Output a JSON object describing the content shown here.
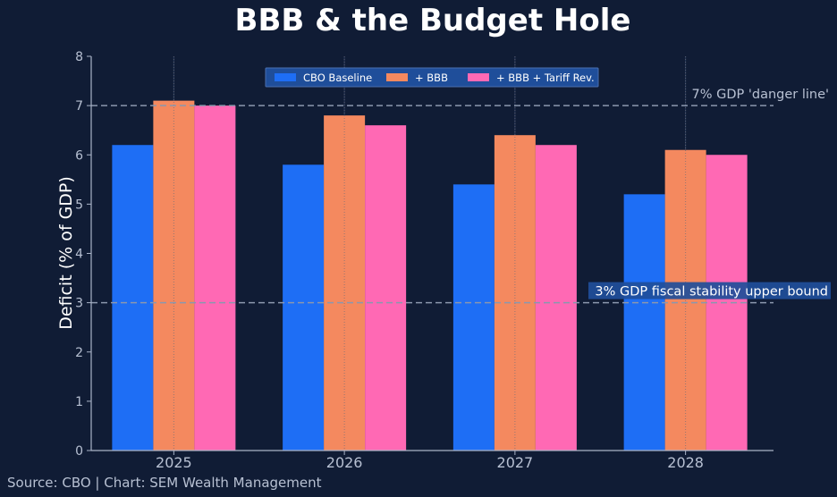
{
  "chart_data": {
    "type": "bar",
    "title": "BBB & the Budget Hole",
    "ylabel": "Deficit (% of GDP)",
    "xlabel": "",
    "ylim": [
      0,
      8
    ],
    "yticks": [
      "0",
      "1",
      "2",
      "3",
      "4",
      "5",
      "6",
      "7",
      "8"
    ],
    "categories": [
      "2025",
      "2026",
      "2027",
      "2028"
    ],
    "series": [
      {
        "name": "CBO Baseline",
        "color": "#1e6ef5",
        "values": [
          6.2,
          5.8,
          5.4,
          5.2
        ]
      },
      {
        "name": "+ BBB",
        "color": "#f4895f",
        "values": [
          7.1,
          6.8,
          6.4,
          6.1
        ]
      },
      {
        "name": "+ BBB + Tariff Rev.",
        "color": "#ff69b4",
        "values": [
          7.0,
          6.6,
          6.2,
          6.0
        ]
      }
    ],
    "reference_lines": [
      {
        "value": 7,
        "label": "7% GDP 'danger line'"
      },
      {
        "value": 3,
        "label": "3% GDP fiscal stability upper bound"
      }
    ],
    "legend_position": "top-center",
    "source": "Source: CBO | Chart: SEM Wealth Management"
  },
  "colors": {
    "background": "#101c35",
    "axis": "#aab4c8",
    "title": "#ffffff",
    "refline": "#8b97ad",
    "legend_bg": "#1f4e9a",
    "annotation_bg": "#1f4e9a"
  }
}
